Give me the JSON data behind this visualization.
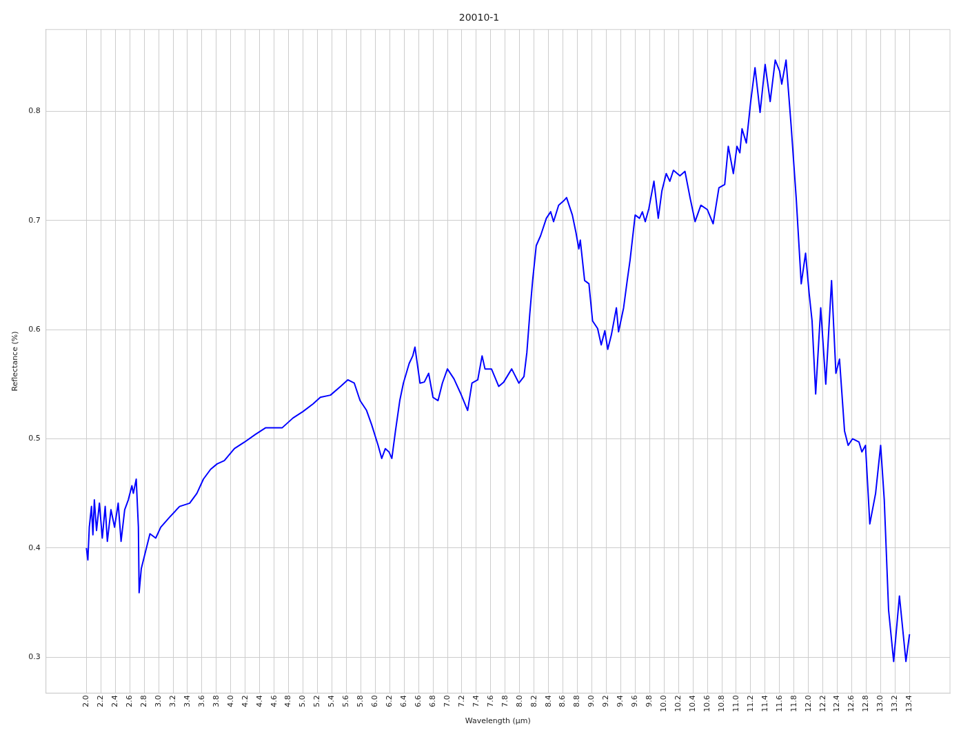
{
  "chart_data": {
    "type": "line",
    "title": "20010-1",
    "xlabel": "Wavelength (µm)",
    "ylabel": "Reflectance (%)",
    "xlim": [
      1.44,
      13.96
    ],
    "ylim": [
      0.267,
      0.875
    ],
    "xticks": [
      {
        "value": 2.0,
        "label": "2.0"
      },
      {
        "value": 2.2,
        "label": "2.2"
      },
      {
        "value": 2.4,
        "label": "2.4"
      },
      {
        "value": 2.6,
        "label": "2.6"
      },
      {
        "value": 2.8,
        "label": "2.8"
      },
      {
        "value": 3.0,
        "label": "3.0"
      },
      {
        "value": 3.2,
        "label": "3.2"
      },
      {
        "value": 3.4,
        "label": "3.4"
      },
      {
        "value": 3.6,
        "label": "3.6"
      },
      {
        "value": 3.8,
        "label": "3.8"
      },
      {
        "value": 4.0,
        "label": "4.0"
      },
      {
        "value": 4.2,
        "label": "4.2"
      },
      {
        "value": 4.4,
        "label": "4.4"
      },
      {
        "value": 4.6,
        "label": "4.6"
      },
      {
        "value": 4.8,
        "label": "4.8"
      },
      {
        "value": 5.0,
        "label": "5.0"
      },
      {
        "value": 5.2,
        "label": "5.2"
      },
      {
        "value": 5.4,
        "label": "5.4"
      },
      {
        "value": 5.6,
        "label": "5.6"
      },
      {
        "value": 5.8,
        "label": "5.8"
      },
      {
        "value": 6.0,
        "label": "6.0"
      },
      {
        "value": 6.2,
        "label": "6.2"
      },
      {
        "value": 6.4,
        "label": "6.4"
      },
      {
        "value": 6.6,
        "label": "6.6"
      },
      {
        "value": 6.8,
        "label": "6.8"
      },
      {
        "value": 7.0,
        "label": "7.0"
      },
      {
        "value": 7.2,
        "label": "7.2"
      },
      {
        "value": 7.4,
        "label": "7.4"
      },
      {
        "value": 7.6,
        "label": "7.6"
      },
      {
        "value": 7.8,
        "label": "7.8"
      },
      {
        "value": 8.0,
        "label": "8.0"
      },
      {
        "value": 8.2,
        "label": "8.2"
      },
      {
        "value": 8.4,
        "label": "8.4"
      },
      {
        "value": 8.6,
        "label": "8.6"
      },
      {
        "value": 8.8,
        "label": "8.8"
      },
      {
        "value": 9.0,
        "label": "9.0"
      },
      {
        "value": 9.2,
        "label": "9.2"
      },
      {
        "value": 9.4,
        "label": "9.4"
      },
      {
        "value": 9.6,
        "label": "9.6"
      },
      {
        "value": 9.8,
        "label": "9.8"
      },
      {
        "value": 10.0,
        "label": "10.0"
      },
      {
        "value": 10.2,
        "label": "10.2"
      },
      {
        "value": 10.4,
        "label": "10.4"
      },
      {
        "value": 10.6,
        "label": "10.6"
      },
      {
        "value": 10.8,
        "label": "10.8"
      },
      {
        "value": 11.0,
        "label": "11.0"
      },
      {
        "value": 11.2,
        "label": "11.2"
      },
      {
        "value": 11.4,
        "label": "11.4"
      },
      {
        "value": 11.6,
        "label": "11.6"
      },
      {
        "value": 11.8,
        "label": "11.8"
      },
      {
        "value": 12.0,
        "label": "12.0"
      },
      {
        "value": 12.2,
        "label": "12.2"
      },
      {
        "value": 12.4,
        "label": "12.4"
      },
      {
        "value": 12.6,
        "label": "12.6"
      },
      {
        "value": 12.8,
        "label": "12.8"
      },
      {
        "value": 13.0,
        "label": "13.0"
      },
      {
        "value": 13.2,
        "label": "13.2"
      },
      {
        "value": 13.4,
        "label": "13.4"
      }
    ],
    "yticks": [
      0.3,
      0.4,
      0.5,
      0.6,
      0.7,
      0.8
    ],
    "grid": true,
    "legend": false,
    "marker": "none",
    "line_style": "solid",
    "series": [
      {
        "color": "#0000ff",
        "x": [
          2.0,
          2.02,
          2.04,
          2.07,
          2.09,
          2.11,
          2.14,
          2.18,
          2.22,
          2.26,
          2.29,
          2.34,
          2.39,
          2.44,
          2.48,
          2.53,
          2.58,
          2.63,
          2.65,
          2.69,
          2.72,
          2.73,
          2.76,
          2.82,
          2.88,
          2.96,
          3.03,
          3.15,
          3.29,
          3.43,
          3.53,
          3.62,
          3.72,
          3.81,
          3.91,
          4.05,
          4.19,
          4.34,
          4.48,
          4.62,
          4.71,
          4.86,
          5.0,
          5.14,
          5.24,
          5.38,
          5.52,
          5.62,
          5.71,
          5.79,
          5.88,
          5.95,
          6.04,
          6.09,
          6.14,
          6.19,
          6.23,
          6.28,
          6.34,
          6.39,
          6.47,
          6.52,
          6.55,
          6.58,
          6.62,
          6.68,
          6.74,
          6.8,
          6.87,
          6.93,
          7.0,
          7.09,
          7.18,
          7.28,
          7.34,
          7.42,
          7.48,
          7.52,
          7.61,
          7.71,
          7.78,
          7.89,
          7.99,
          8.06,
          8.1,
          8.14,
          8.18,
          8.23,
          8.29,
          8.37,
          8.43,
          8.47,
          8.54,
          8.61,
          8.65,
          8.73,
          8.78,
          8.82,
          8.84,
          8.9,
          8.96,
          9.01,
          9.08,
          9.13,
          9.18,
          9.22,
          9.27,
          9.34,
          9.37,
          9.44,
          9.49,
          9.53,
          9.6,
          9.66,
          9.7,
          9.74,
          9.79,
          9.86,
          9.92,
          9.97,
          10.03,
          10.08,
          10.13,
          10.22,
          10.29,
          10.36,
          10.43,
          10.51,
          10.6,
          10.68,
          10.76,
          10.84,
          10.89,
          10.96,
          11.01,
          11.05,
          11.08,
          11.14,
          11.2,
          11.26,
          11.33,
          11.4,
          11.47,
          11.54,
          11.6,
          11.63,
          11.69,
          11.76,
          11.83,
          11.9,
          11.96,
          12.01,
          12.05,
          12.1,
          12.17,
          12.24,
          12.32,
          12.38,
          12.43,
          12.5,
          12.55,
          12.61,
          12.7,
          12.74,
          12.79,
          12.85,
          12.93,
          13.0,
          13.05,
          13.11,
          13.18,
          13.26,
          13.35,
          13.4
        ],
        "values": [
          0.4,
          0.389,
          0.419,
          0.438,
          0.412,
          0.444,
          0.416,
          0.441,
          0.409,
          0.438,
          0.406,
          0.435,
          0.419,
          0.441,
          0.406,
          0.435,
          0.444,
          0.457,
          0.45,
          0.463,
          0.419,
          0.359,
          0.381,
          0.397,
          0.413,
          0.409,
          0.419,
          0.428,
          0.438,
          0.441,
          0.45,
          0.463,
          0.472,
          0.477,
          0.48,
          0.491,
          0.497,
          0.504,
          0.51,
          0.51,
          0.51,
          0.519,
          0.525,
          0.532,
          0.538,
          0.54,
          0.548,
          0.554,
          0.551,
          0.535,
          0.526,
          0.513,
          0.494,
          0.482,
          0.491,
          0.488,
          0.482,
          0.507,
          0.535,
          0.551,
          0.569,
          0.576,
          0.584,
          0.57,
          0.551,
          0.552,
          0.56,
          0.538,
          0.535,
          0.551,
          0.564,
          0.555,
          0.542,
          0.526,
          0.551,
          0.554,
          0.576,
          0.564,
          0.564,
          0.548,
          0.552,
          0.564,
          0.551,
          0.557,
          0.579,
          0.614,
          0.645,
          0.677,
          0.686,
          0.702,
          0.708,
          0.699,
          0.714,
          0.718,
          0.721,
          0.705,
          0.689,
          0.674,
          0.682,
          0.645,
          0.642,
          0.608,
          0.601,
          0.586,
          0.599,
          0.582,
          0.595,
          0.62,
          0.598,
          0.62,
          0.645,
          0.664,
          0.705,
          0.702,
          0.708,
          0.699,
          0.711,
          0.736,
          0.702,
          0.727,
          0.743,
          0.736,
          0.746,
          0.741,
          0.745,
          0.721,
          0.699,
          0.714,
          0.71,
          0.697,
          0.73,
          0.733,
          0.768,
          0.743,
          0.768,
          0.762,
          0.784,
          0.771,
          0.809,
          0.84,
          0.799,
          0.843,
          0.809,
          0.847,
          0.837,
          0.825,
          0.847,
          0.787,
          0.721,
          0.642,
          0.67,
          0.633,
          0.608,
          0.541,
          0.62,
          0.55,
          0.645,
          0.56,
          0.573,
          0.507,
          0.494,
          0.5,
          0.497,
          0.488,
          0.494,
          0.422,
          0.45,
          0.494,
          0.444,
          0.343,
          0.296,
          0.356,
          0.296,
          0.321
        ]
      }
    ]
  }
}
